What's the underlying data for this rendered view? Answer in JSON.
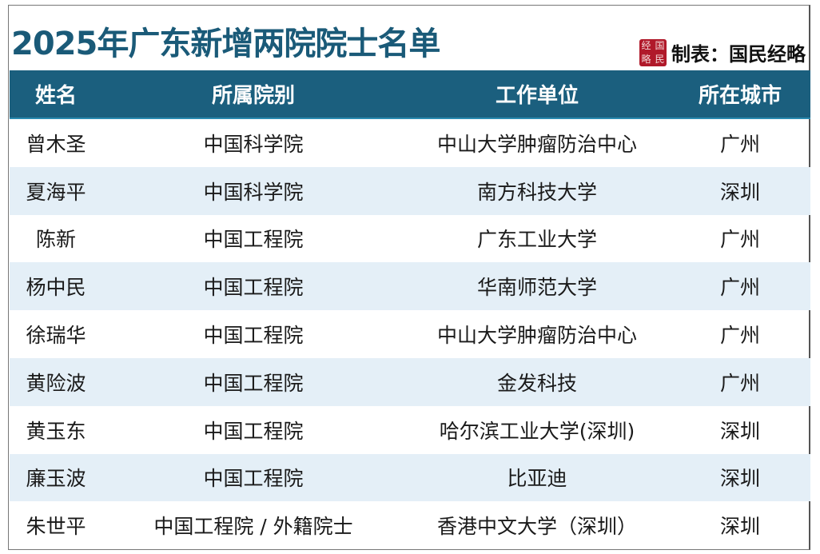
{
  "title": "2025年广东新增两院院士名单",
  "credit": {
    "logo_text": "经国略民",
    "logo_chars": [
      "经",
      "国",
      "略",
      "民"
    ],
    "label": "制表：国民经略"
  },
  "colors": {
    "header_bg": "#1b5f7e",
    "title": "#1a5a78",
    "alt_row": "#e4eff7",
    "seal": "#b0192a"
  },
  "table": {
    "headers": [
      "姓名",
      "所属院别",
      "工作单位",
      "所在城市"
    ],
    "rows": [
      [
        "曾木圣",
        "中国科学院",
        "中山大学肿瘤防治中心",
        "广州"
      ],
      [
        "夏海平",
        "中国科学院",
        "南方科技大学",
        "深圳"
      ],
      [
        "陈新",
        "中国工程院",
        "广东工业大学",
        "广州"
      ],
      [
        "杨中民",
        "中国工程院",
        "华南师范大学",
        "广州"
      ],
      [
        "徐瑞华",
        "中国工程院",
        "中山大学肿瘤防治中心",
        "广州"
      ],
      [
        "黄险波",
        "中国工程院",
        "金发科技",
        "广州"
      ],
      [
        "黄玉东",
        "中国工程院",
        "哈尔滨工业大学(深圳)",
        "深圳"
      ],
      [
        "廉玉波",
        "中国工程院",
        "比亚迪",
        "深圳"
      ],
      [
        "朱世平",
        "中国工程院 / 外籍院士",
        "香港中文大学（深圳）",
        "深圳"
      ]
    ]
  }
}
